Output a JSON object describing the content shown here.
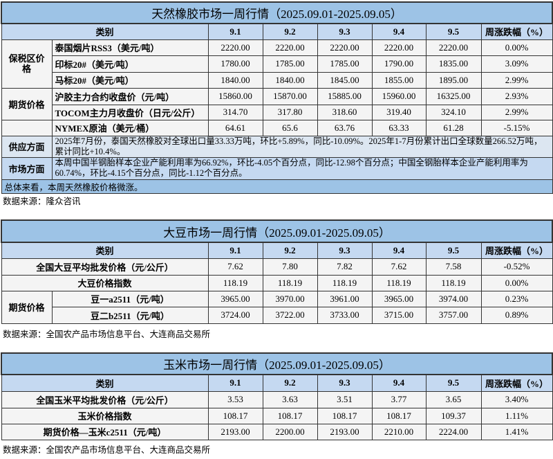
{
  "rubber": {
    "title": "天然橡胶市场一周行情（2025.09.01-2025.09.05）",
    "headers": [
      "类别",
      "9.1",
      "9.2",
      "9.3",
      "9.4",
      "9.5",
      "周涨跌幅（%）"
    ],
    "group_bonded": "保税区价格",
    "group_futures": "期货价格",
    "rows": [
      {
        "label": "泰国烟片RSS3（美元/吨）",
        "values": [
          "2220.00",
          "2220.00",
          "2220.00",
          "2220.00",
          "2220.00"
        ],
        "change": "0.00%"
      },
      {
        "label": "印标20#（美元/吨）",
        "values": [
          "1780.00",
          "1785.00",
          "1785.00",
          "1790.00",
          "1835.00"
        ],
        "change": "3.09%"
      },
      {
        "label": "马标20#（美元/吨）",
        "values": [
          "1840.00",
          "1840.00",
          "1845.00",
          "1855.00",
          "1895.00"
        ],
        "change": "2.99%"
      },
      {
        "label": "沪胶主力合约收盘价（元/吨）",
        "values": [
          "15860.00",
          "15870.00",
          "15885.00",
          "15960.00",
          "16325.00"
        ],
        "change": "2.93%"
      },
      {
        "label": "TOCOM主力月收盘价（日元/公斤）",
        "values": [
          "314.70",
          "317.80",
          "318.60",
          "319.40",
          "324.10"
        ],
        "change": "2.99%"
      },
      {
        "label": "NYMEX原油（美元/桶）",
        "values": [
          "64.61",
          "65.6",
          "63.76",
          "63.33",
          "61.28"
        ],
        "change": "-5.15%"
      }
    ],
    "supply_label": "供应方面",
    "supply_text": "2025年7月份，泰国天然橡胶对全球出口量33.33万吨，环比+5.89%，同比-10.09%。2025年1-7月份累计出口全球数量266.52万吨，累计同比+10.4%。",
    "market_label": "市场方面",
    "market_text": "本周中国半钢胎样本企业产能利用率为66.92%，环比-4.05个百分点，同比-12.98个百分点；中国全钢胎样本企业产能利用率为60.74%，环比-4.15个百分点，同比-1.12个百分点。",
    "summary": "总体来看，本周天然橡胶价格微涨。",
    "source": "数据来源：隆众咨讯"
  },
  "soybean": {
    "title": "大豆市场一周行情（2025.09.01-2025.09.05）",
    "headers": [
      "类别",
      "9.1",
      "9.2",
      "9.3",
      "9.4",
      "9.5",
      "周涨跌幅（%）"
    ],
    "group_futures": "期货价格",
    "rows": [
      {
        "label": "全国大豆平均批发价格（元/公斤）",
        "values": [
          "7.62",
          "7.80",
          "7.82",
          "7.62",
          "7.58"
        ],
        "change": "-0.52%"
      },
      {
        "label": "大豆价格指数",
        "values": [
          "118.19",
          "118.19",
          "118.19",
          "118.19",
          "118.19"
        ],
        "change": "0.00%"
      },
      {
        "label": "豆一a2511（元/吨）",
        "values": [
          "3965.00",
          "3970.00",
          "3961.00",
          "3965.00",
          "3974.00"
        ],
        "change": "0.23%"
      },
      {
        "label": "豆二b2511（元/吨）",
        "values": [
          "3724.00",
          "3722.00",
          "3733.00",
          "3715.00",
          "3757.00"
        ],
        "change": "0.89%"
      }
    ],
    "source": "数据来源：全国农产品市场信息平台、大连商品交易所"
  },
  "corn": {
    "title": "玉米市场一周行情（2025.09.01-2025.09.05）",
    "headers": [
      "类别",
      "9.1",
      "9.2",
      "9.3",
      "9.4",
      "9.5",
      "周涨跌幅（%）"
    ],
    "rows": [
      {
        "label": "全国玉米平均批发价格（元/公斤）",
        "values": [
          "3.53",
          "3.63",
          "3.51",
          "3.77",
          "3.65"
        ],
        "change": "3.40%"
      },
      {
        "label": "玉米价格指数",
        "values": [
          "108.17",
          "108.17",
          "108.17",
          "108.17",
          "109.37"
        ],
        "change": "1.11%"
      },
      {
        "label": "期货价格—玉米c2511（元/吨）",
        "values": [
          "2193.00",
          "2200.00",
          "2193.00",
          "2210.00",
          "2224.00"
        ],
        "change": "1.41%"
      }
    ],
    "source": "数据来源：全国农产品市场信息平台、大连商品交易所"
  }
}
